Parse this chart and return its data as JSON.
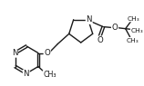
{
  "line_color": "#1a1a1a",
  "line_width": 1.0,
  "font_size": 6.2,
  "fig_width": 1.58,
  "fig_height": 0.95,
  "dpi": 100,
  "xlim": [
    0,
    158
  ],
  "ylim": [
    0,
    95
  ]
}
